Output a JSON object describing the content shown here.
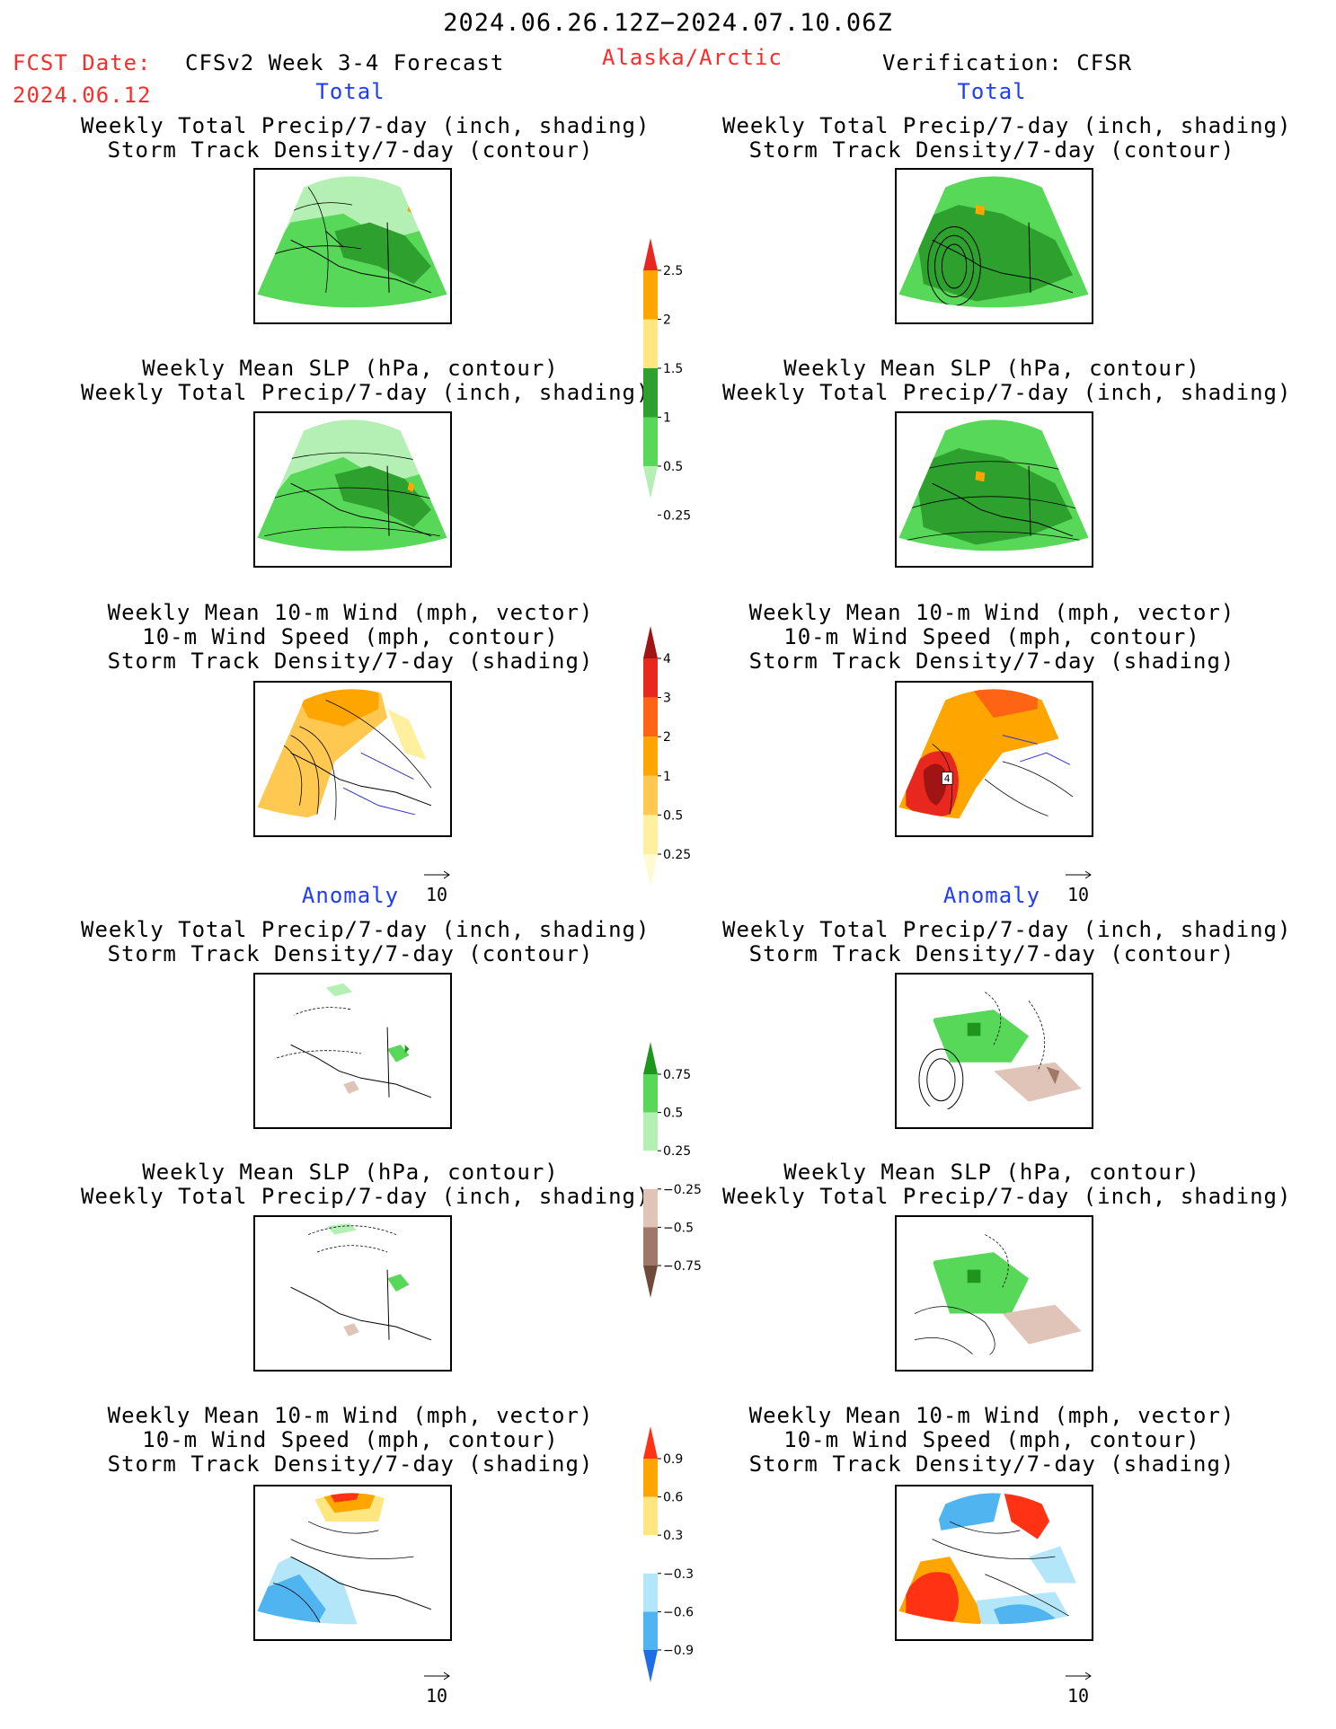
{
  "header": {
    "date_range": "2024.06.26.12Z−2024.07.10.06Z",
    "fcst_label": "FCST Date:",
    "fcst_date": "2024.06.12",
    "model": "CFSv2 Week 3-4 Forecast",
    "region": "Alaska/Arctic",
    "verification": "Verification: CFSR"
  },
  "sections": {
    "total_left": "Total",
    "total_right": "Total",
    "anomaly_left": "Anomaly",
    "anomaly_right": "Anomaly"
  },
  "panel_titles": {
    "precip_storm": [
      "Weekly Total Precip/7-day (inch, shading)",
      "Storm Track Density/7-day (contour)"
    ],
    "slp_precip": [
      "Weekly Mean SLP (hPa, contour)",
      "Weekly Total Precip/7-day (inch, shading)"
    ],
    "wind_storm": [
      "Weekly Mean 10-m Wind (mph, vector)",
      "10-m Wind Speed (mph, contour)",
      "Storm Track Density/7-day (shading)"
    ]
  },
  "colorbars": {
    "precip_total": {
      "labels": [
        "2.5",
        "2",
        "1.5",
        "1",
        "0.5",
        "0.25"
      ],
      "colors": [
        "#e8281e",
        "#ffa500",
        "#ffe680",
        "#2ea02e",
        "#58d858",
        "#b4f0b4"
      ]
    },
    "storm_total": {
      "labels": [
        "4",
        "3",
        "2",
        "1",
        "0.5",
        "0.25"
      ],
      "colors": [
        "#a01414",
        "#e8281e",
        "#ff6414",
        "#ffa500",
        "#ffc850",
        "#fff0a0",
        "#fffad2"
      ]
    },
    "precip_anom": {
      "labels": [
        "0.75",
        "0.5",
        "0.25",
        "−0.25",
        "−0.5",
        "−0.75"
      ],
      "colors": [
        "#1e961e",
        "#58d858",
        "#b4f0b4",
        "#ffffff",
        "#e0c4b8",
        "#a07868",
        "#6e4a3a"
      ]
    },
    "storm_anom": {
      "labels": [
        "0.9",
        "0.6",
        "0.3",
        "−0.3",
        "−0.6",
        "−0.9"
      ],
      "colors": [
        "#ff3214",
        "#ffa500",
        "#ffe680",
        "#ffffff",
        "#b4e6fa",
        "#50b4f0",
        "#1e6ee6"
      ]
    }
  },
  "vector_ref": {
    "value": "10"
  },
  "map_marker": {
    "value": "4"
  }
}
